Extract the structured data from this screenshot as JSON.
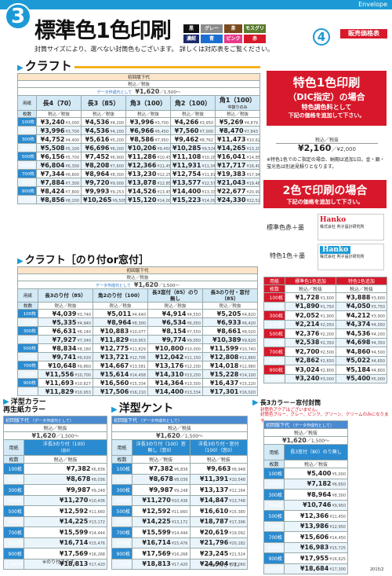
{
  "header": {
    "category": "Envelope",
    "number": "3",
    "title": "標準色1色印刷",
    "number_right": "4",
    "price_tag": "販売価格表",
    "colors": [
      {
        "label": "黒",
        "color": "#111111"
      },
      {
        "label": "グレー",
        "color": "#8a8a8a"
      },
      {
        "label": "茶",
        "color": "#7a4a1e"
      },
      {
        "label": "モスグリーン",
        "color": "#5b7a2e"
      },
      {
        "label": "濃紺",
        "color": "#1b2a6b"
      },
      {
        "label": "青",
        "color": "#1c6fd0"
      },
      {
        "label": "ピンク",
        "color": "#e83a8a"
      },
      {
        "label": "赤",
        "color": "#d7182a"
      }
    ],
    "subtitle": "封筒サイズにより、選べない封筒色もございます。 詳しくは対応表をご覧ください。"
  },
  "kraft": {
    "heading": "クラフト",
    "init_label": "初回版下代",
    "tax_label": "税込／税抜",
    "data_label": "データ作成代として",
    "data_price": "¥1,620",
    "data_price2": "／1,500～",
    "paper_label": "用紙",
    "qty_label": "枚数",
    "cols": [
      "長4（70）",
      "長3（85）",
      "角3（100）",
      "角2（100）",
      "角1（100）"
    ],
    "col5_note": "中抜りのみ",
    "rows": [
      {
        "q": "100枚",
        "v": [
          [
            "¥3,240",
            "¥3,000"
          ],
          [
            "¥4,536",
            "¥4,200"
          ],
          [
            "¥3,996",
            "¥3,700"
          ],
          [
            "¥4,266",
            "¥3,950"
          ],
          [
            "¥5,269",
            "¥4,879"
          ]
        ]
      },
      {
        "q": "200枚",
        "v": [
          [
            "¥3,996",
            "¥3,700"
          ],
          [
            "¥4,536",
            "¥4,200"
          ],
          [
            "¥6,966",
            "¥6,450"
          ],
          [
            "¥7,560",
            "¥7,000"
          ],
          [
            "¥8,470",
            "¥7,843"
          ]
        ]
      },
      {
        "q": "300枚",
        "v": [
          [
            "¥4,752",
            "¥4,400"
          ],
          [
            "¥5,616",
            "¥5,200"
          ],
          [
            "¥8,586",
            "¥7,950"
          ],
          [
            "¥9,462",
            "¥8,762"
          ],
          [
            "¥11,473",
            "¥10,624"
          ]
        ]
      },
      {
        "q": "400枚",
        "v": [
          [
            "¥5,508",
            "¥5,100"
          ],
          [
            "¥6,696",
            "¥6,200"
          ],
          [
            "¥10,206",
            "¥9,450"
          ],
          [
            "¥10,285",
            "¥9,524"
          ],
          [
            "¥14,265",
            "¥13,209"
          ]
        ]
      },
      {
        "q": "500枚",
        "v": [
          [
            "¥6,156",
            "¥5,700"
          ],
          [
            "¥7,452",
            "¥6,900"
          ],
          [
            "¥11,286",
            "¥10,450"
          ],
          [
            "¥11,108",
            "¥10,286"
          ],
          [
            "¥16,041",
            "¥14,853"
          ]
        ]
      },
      {
        "q": "600枚",
        "v": [
          [
            "¥6,804",
            "¥6,300"
          ],
          [
            "¥8,208",
            "¥7,600"
          ],
          [
            "¥12,366",
            "¥11,450"
          ],
          [
            "¥11,931",
            "¥11,048"
          ],
          [
            "¥17,717",
            "¥16,405"
          ]
        ]
      },
      {
        "q": "700枚",
        "v": [
          [
            "¥7,344",
            "¥6,800"
          ],
          [
            "¥8,964",
            "¥8,300"
          ],
          [
            "¥13,230",
            "¥12,250"
          ],
          [
            "¥12,754",
            "¥11,810"
          ],
          [
            "¥19,383",
            "¥17,948"
          ]
        ]
      },
      {
        "q": "800枚",
        "v": [
          [
            "¥7,884",
            "¥7,300"
          ],
          [
            "¥9,720",
            "¥9,000"
          ],
          [
            "¥13,878",
            "¥12,850"
          ],
          [
            "¥13,577",
            "¥12,572"
          ],
          [
            "¥21,043",
            "¥19,485"
          ]
        ]
      },
      {
        "q": "900枚",
        "v": [
          [
            "¥8,424",
            "¥7,800"
          ],
          [
            "¥9,993",
            "¥9,253"
          ],
          [
            "¥14,526",
            "¥13,450"
          ],
          [
            "¥14,400",
            "¥13,334"
          ],
          [
            "¥22,677",
            "¥20,998"
          ]
        ]
      },
      {
        "q": "1,000枚",
        "v": [
          [
            "¥8,856",
            "¥8,200"
          ],
          [
            "¥10,265",
            "¥9,505"
          ],
          [
            "¥15,120",
            "¥14,000"
          ],
          [
            "¥15,223",
            "¥14,096"
          ],
          [
            "¥24,330",
            "¥22,528"
          ]
        ]
      }
    ]
  },
  "special": {
    "title": "特色1色印刷",
    "title2": "（DIC指定）の場合",
    "line1": "特色調色料として",
    "line2": "下記の価格を追加して下さい。",
    "tax": "税込／税抜",
    "price": "¥2,160",
    "price2": "／¥2,000",
    "note": "※特色1色でのご指定の場合、納期は追加1日。金・銀・蛍光色は別途見積りとなります。"
  },
  "two": {
    "title": "2色で印刷の場合",
    "sub": "下記の価格を追加して下さい。",
    "opt1": "標準色赤＋墨",
    "opt2": "特色1色＋墨",
    "logo": "Hanko",
    "logo_sub": "株式会社 判子設計研究所",
    "col_paper": "用紙",
    "col_a": "標準色1色追加",
    "col_b": "特色1色追加",
    "tax": "税込／税抜",
    "qty_label": "枚数",
    "rows": [
      {
        "q": "100枚",
        "a": [
          "¥1,728",
          "¥1,600"
        ],
        "b": [
          "¥3,888",
          "¥3,600"
        ]
      },
      {
        "q": "200枚",
        "a": [
          "¥1,890",
          "¥1,750"
        ],
        "b": [
          "¥4,050",
          "¥3,750"
        ]
      },
      {
        "q": "300枚",
        "a": [
          "¥2,052",
          "¥1,900"
        ],
        "b": [
          "¥4,212",
          "¥3,900"
        ]
      },
      {
        "q": "400枚",
        "a": [
          "¥2,214",
          "¥2,050"
        ],
        "b": [
          "¥4,374",
          "¥4,050"
        ]
      },
      {
        "q": "500枚",
        "a": [
          "¥2,376",
          "¥2,200"
        ],
        "b": [
          "¥4,536",
          "¥4,200"
        ]
      },
      {
        "q": "600枚",
        "a": [
          "¥2,538",
          "¥2,350"
        ],
        "b": [
          "¥4,698",
          "¥4,350"
        ]
      },
      {
        "q": "700枚",
        "a": [
          "¥2,700",
          "¥2,500"
        ],
        "b": [
          "¥4,860",
          "¥4,500"
        ]
      },
      {
        "q": "800枚",
        "a": [
          "¥2,862",
          "¥2,650"
        ],
        "b": [
          "¥5,022",
          "¥4,650"
        ]
      },
      {
        "q": "900枚",
        "a": [
          "¥3,024",
          "¥2,800"
        ],
        "b": [
          "¥5,184",
          "¥4,800"
        ]
      },
      {
        "q": "1,000枚",
        "a": [
          "¥3,240",
          "¥3,000"
        ],
        "b": [
          "¥5,400",
          "¥5,000"
        ]
      }
    ]
  },
  "kraft2": {
    "heading": "クラフト［のり付or窓付］",
    "init_label": "初回版下代",
    "tax_label": "税込／税抜",
    "data_label": "データ作成代として",
    "data_price": "¥1,620",
    "data_price2": "／1,500～",
    "paper_label": "用紙",
    "qty_label": "枚数",
    "cols": [
      "長3のり付（85）",
      "角2のり付（100）",
      "長3窓付（85）のり無し",
      "長3のり付・窓付（85）"
    ],
    "rows": [
      {
        "q": "100枚",
        "v": [
          [
            "¥4,039",
            "¥3,740"
          ],
          [
            "¥5,011",
            "¥4,640"
          ],
          [
            "¥4,914",
            "¥4,550"
          ],
          [
            "¥5,205",
            "¥4,820"
          ]
        ]
      },
      {
        "q": "200枚",
        "v": [
          [
            "¥5,335",
            "¥4,940"
          ],
          [
            "¥8,964",
            "¥8,300"
          ],
          [
            "¥6,534",
            "¥6,050"
          ],
          [
            "¥6,933",
            "¥6,420"
          ]
        ]
      },
      {
        "q": "300枚",
        "v": [
          [
            "¥6,631",
            "¥6,140"
          ],
          [
            "¥10,883",
            "¥10,077"
          ],
          [
            "¥8,154",
            "¥7,550"
          ],
          [
            "¥8,661",
            "¥8,020"
          ]
        ]
      },
      {
        "q": "400枚",
        "v": [
          [
            "¥7,927",
            "¥7,340"
          ],
          [
            "¥11,829",
            "¥10,953"
          ],
          [
            "¥9,774",
            "¥9,050"
          ],
          [
            "¥10,389",
            "¥9,620"
          ]
        ]
      },
      {
        "q": "500枚",
        "v": [
          [
            "¥8,834",
            "¥8,180"
          ],
          [
            "¥12,775",
            "¥11,829"
          ],
          [
            "¥10,800",
            "¥10,000"
          ],
          [
            "¥11,599",
            "¥10,740"
          ]
        ]
      },
      {
        "q": "600枚",
        "v": [
          [
            "¥9,741",
            "¥9,020"
          ],
          [
            "¥13,721",
            "¥12,705"
          ],
          [
            "¥12,042",
            "¥11,150"
          ],
          [
            "¥12,808",
            "¥11,860"
          ]
        ]
      },
      {
        "q": "700枚",
        "v": [
          [
            "¥10,648",
            "¥9,860"
          ],
          [
            "¥14,667",
            "¥13,581"
          ],
          [
            "¥13,176",
            "¥12,200"
          ],
          [
            "¥14,018",
            "¥12,980"
          ]
        ]
      },
      {
        "q": "800枚",
        "v": [
          [
            "¥11,556",
            "¥10,700"
          ],
          [
            "¥15,614",
            "¥14,458"
          ],
          [
            "¥14,310",
            "¥13,250"
          ],
          [
            "¥15,228",
            "¥14,100"
          ]
        ]
      },
      {
        "q": "900枚",
        "v": [
          [
            "¥11,693",
            "¥10,827"
          ],
          [
            "¥16,560",
            "¥15,334"
          ],
          [
            "¥14,364",
            "¥13,300"
          ],
          [
            "¥16,437",
            "¥15,220"
          ]
        ]
      },
      {
        "q": "1,000枚",
        "v": [
          [
            "¥11,829",
            "¥10,953"
          ],
          [
            "¥17,506",
            "¥16,210"
          ],
          [
            "¥14,400",
            "¥13,334"
          ],
          [
            "¥17,301",
            "¥16,020"
          ]
        ]
      }
    ]
  },
  "youkei": {
    "heading": "洋型カラー",
    "heading2": "再生紙カラー",
    "init": "初回版下代",
    "init_note": "（データ作成代として）",
    "tax": "税込／税抜",
    "price": "¥1,620",
    "price2": "／1,500～",
    "paper": "用紙",
    "qty": "枚数",
    "col": "洋長3のり付（100）",
    "col_sub": "（窓0）",
    "rows": [
      [
        "100枚",
        "¥7,382",
        "¥6,836"
      ],
      [
        "200枚",
        "¥8,678",
        "¥8,036"
      ],
      [
        "300枚",
        "¥9,987",
        "¥9,248"
      ],
      [
        "400枚",
        "¥11,270",
        "¥10,436"
      ],
      [
        "500枚",
        "¥12,592",
        "¥11,660"
      ],
      [
        "600枚",
        "¥14,225",
        "¥13,172"
      ],
      [
        "700枚",
        "¥15,599",
        "¥14,444"
      ],
      [
        "800枚",
        "¥16,714",
        "¥15,476"
      ],
      [
        "900枚",
        "¥17,569",
        "¥16,268"
      ],
      [
        "1,000枚",
        "¥18,813",
        "¥17,420"
      ]
    ],
    "note": "※のり付きです。"
  },
  "kent": {
    "heading": "洋型ケント",
    "init": "初回版下代",
    "init_note": "（データ作成代として）",
    "tax": "税込／税抜",
    "price": "¥1,620",
    "price2": "／1,500～",
    "paper": "用紙",
    "qty": "枚数",
    "col_a": "洋長3のり付（100）窓無し（窓0）",
    "col_b": "洋長3のり付・窓付（100）（窓0）",
    "rows": [
      [
        "100枚",
        "¥7,382",
        "¥6,836",
        "¥9,663",
        "¥8,948"
      ],
      [
        "200枚",
        "¥8,678",
        "¥8,036",
        "¥11,391",
        "¥10,548"
      ],
      [
        "300枚",
        "¥9,987",
        "¥9,248",
        "¥13,137",
        "¥12,164"
      ],
      [
        "400枚",
        "¥11,270",
        "¥10,436",
        "¥14,847",
        "¥13,748"
      ],
      [
        "500枚",
        "¥12,592",
        "¥11,660",
        "¥16,610",
        "¥15,380"
      ],
      [
        "600枚",
        "¥14,225",
        "¥13,172",
        "¥18,787",
        "¥17,396"
      ],
      [
        "700枚",
        "¥15,599",
        "¥14,444",
        "¥20,619",
        "¥19,092"
      ],
      [
        "800枚",
        "¥16,714",
        "¥15,476",
        "¥21,796",
        "¥20,182"
      ],
      [
        "900枚",
        "¥17,569",
        "¥16,268",
        "¥23,245",
        "¥21,524"
      ],
      [
        "1,000枚",
        "¥18,813",
        "¥17,420",
        "¥24,904",
        "¥23,060"
      ]
    ],
    "note": "※のり付きです。"
  },
  "color3": {
    "heading": "長3カラー－窓付封筒",
    "note_red": "封筒色アクアはございません。",
    "note_colors": "封筒色ブルー、グレー、ピンク、グリーン、クリームのみになります。",
    "init": "初回版下代",
    "init_note": "（データ作成代として）",
    "tax": "税込／税抜",
    "price": "¥1,620",
    "price2": "／1,500～",
    "paper": "用紙",
    "qty": "枚数",
    "col": "長3窓付（80）のり無し",
    "rows": [
      [
        "100枚",
        "¥5,400",
        "¥5,000"
      ],
      [
        "200枚",
        "¥7,182",
        "¥6,650"
      ],
      [
        "300枚",
        "¥8,964",
        "¥8,300"
      ],
      [
        "400枚",
        "¥10,746",
        "¥9,950"
      ],
      [
        "500枚",
        "¥12,366",
        "¥11,450"
      ],
      [
        "600枚",
        "¥13,986",
        "¥12,950"
      ],
      [
        "700枚",
        "¥15,606",
        "¥14,450"
      ],
      [
        "800枚",
        "¥16,983",
        "¥15,725"
      ],
      [
        "900枚",
        "¥17,955",
        "¥16,625"
      ],
      [
        "1,000枚",
        "¥18,684",
        "¥17,300"
      ]
    ],
    "footer": "2015/2"
  }
}
